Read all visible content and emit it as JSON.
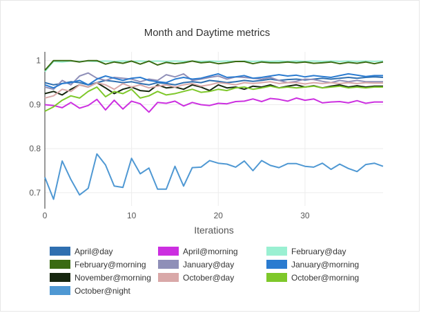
{
  "chart_data": {
    "type": "line",
    "title": "Month and Daytime metrics",
    "xlabel": "Iterations",
    "ylabel": "",
    "xlim": [
      0,
      39
    ],
    "ylim": [
      0.67,
      1.02
    ],
    "x_ticks": [
      0,
      10,
      20,
      30
    ],
    "y_ticks": [
      0.7,
      0.8,
      0.9,
      1
    ],
    "y_tick_labels": [
      "0.7",
      "0.8",
      "0.9",
      "1"
    ],
    "grid": true,
    "legend_position": "bottom",
    "series": [
      {
        "name": "April@day",
        "color": "#2f6fb0",
        "values": [
          0.95,
          0.945,
          0.948,
          0.952,
          0.95,
          0.945,
          0.95,
          0.955,
          0.953,
          0.95,
          0.952,
          0.948,
          0.945,
          0.95,
          0.948,
          0.945,
          0.95,
          0.952,
          0.95,
          0.955,
          0.953,
          0.95,
          0.952,
          0.955,
          0.953,
          0.955,
          0.958,
          0.955,
          0.957,
          0.958,
          0.956,
          0.958,
          0.96,
          0.958,
          0.96,
          0.962,
          0.96,
          0.962,
          0.963,
          0.962
        ]
      },
      {
        "name": "April@morning",
        "color": "#cc2fe0",
        "values": [
          0.9,
          0.898,
          0.893,
          0.905,
          0.892,
          0.898,
          0.912,
          0.888,
          0.91,
          0.89,
          0.908,
          0.902,
          0.883,
          0.905,
          0.903,
          0.908,
          0.897,
          0.905,
          0.9,
          0.898,
          0.903,
          0.902,
          0.907,
          0.908,
          0.913,
          0.907,
          0.914,
          0.912,
          0.908,
          0.915,
          0.91,
          0.913,
          0.904,
          0.906,
          0.907,
          0.904,
          0.909,
          0.903,
          0.906,
          0.906
        ]
      },
      {
        "name": "February@day",
        "color": "#9af0d2",
        "values": [
          0.975,
          0.998,
          0.997,
          0.999,
          0.998,
          0.999,
          0.998,
          0.999,
          0.998,
          0.999,
          0.998,
          0.999,
          0.998,
          0.999,
          0.998,
          0.999,
          0.998,
          0.999,
          0.998,
          0.999,
          0.998,
          0.999,
          0.998,
          0.999,
          0.998,
          0.999,
          0.998,
          0.999,
          0.998,
          0.999,
          0.998,
          0.999,
          0.998,
          0.999,
          0.998,
          0.999,
          0.998,
          0.999,
          0.998,
          0.999
        ]
      },
      {
        "name": "February@morning",
        "color": "#3a6a12",
        "values": [
          0.978,
          1.0,
          1.0,
          1.0,
          0.997,
          1.0,
          1.0,
          0.992,
          0.997,
          0.994,
          0.999,
          0.992,
          0.999,
          0.99,
          0.996,
          0.993,
          0.995,
          0.999,
          0.995,
          0.997,
          0.993,
          0.995,
          0.998,
          0.998,
          0.993,
          0.997,
          0.995,
          0.995,
          0.997,
          0.995,
          0.997,
          0.994,
          0.995,
          0.997,
          0.993,
          0.996,
          0.994,
          0.997,
          0.993,
          0.997
        ]
      },
      {
        "name": "January@day",
        "color": "#8f8fb8",
        "values": [
          0.94,
          0.935,
          0.955,
          0.945,
          0.965,
          0.972,
          0.96,
          0.955,
          0.962,
          0.96,
          0.958,
          0.952,
          0.958,
          0.955,
          0.968,
          0.963,
          0.97,
          0.955,
          0.958,
          0.962,
          0.965,
          0.958,
          0.963,
          0.962,
          0.96,
          0.958,
          0.962,
          0.955,
          0.95,
          0.953,
          0.958,
          0.957,
          0.953,
          0.95,
          0.955,
          0.952,
          0.955,
          0.952,
          0.952,
          0.952
        ]
      },
      {
        "name": "January@morning",
        "color": "#2a7bd0",
        "values": [
          0.945,
          0.938,
          0.948,
          0.95,
          0.955,
          0.945,
          0.958,
          0.965,
          0.96,
          0.955,
          0.96,
          0.962,
          0.955,
          0.952,
          0.95,
          0.958,
          0.962,
          0.958,
          0.96,
          0.965,
          0.97,
          0.962,
          0.963,
          0.966,
          0.96,
          0.962,
          0.965,
          0.968,
          0.965,
          0.967,
          0.963,
          0.966,
          0.964,
          0.962,
          0.966,
          0.97,
          0.967,
          0.964,
          0.966,
          0.966
        ]
      },
      {
        "name": "November@morning",
        "color": "#16260f",
        "values": [
          0.925,
          0.93,
          0.922,
          0.935,
          0.945,
          0.94,
          0.95,
          0.938,
          0.925,
          0.935,
          0.94,
          0.932,
          0.93,
          0.945,
          0.938,
          0.94,
          0.935,
          0.945,
          0.94,
          0.932,
          0.945,
          0.938,
          0.94,
          0.935,
          0.942,
          0.94,
          0.945,
          0.938,
          0.942,
          0.945,
          0.94,
          0.943,
          0.938,
          0.942,
          0.945,
          0.94,
          0.943,
          0.94,
          0.942,
          0.942
        ]
      },
      {
        "name": "October@day",
        "color": "#d9a8a8",
        "values": [
          0.915,
          0.92,
          0.935,
          0.93,
          0.945,
          0.94,
          0.95,
          0.945,
          0.935,
          0.948,
          0.94,
          0.945,
          0.938,
          0.942,
          0.945,
          0.94,
          0.945,
          0.948,
          0.942,
          0.945,
          0.95,
          0.948,
          0.945,
          0.95,
          0.948,
          0.95,
          0.952,
          0.948,
          0.95,
          0.95,
          0.947,
          0.95,
          0.948,
          0.95,
          0.948,
          0.95,
          0.948,
          0.95,
          0.949,
          0.949
        ]
      },
      {
        "name": "October@morning",
        "color": "#7ec82a",
        "values": [
          0.885,
          0.895,
          0.91,
          0.92,
          0.915,
          0.93,
          0.94,
          0.918,
          0.93,
          0.925,
          0.935,
          0.915,
          0.92,
          0.93,
          0.922,
          0.925,
          0.93,
          0.935,
          0.928,
          0.93,
          0.935,
          0.932,
          0.938,
          0.94,
          0.935,
          0.938,
          0.942,
          0.938,
          0.94,
          0.938,
          0.94,
          0.942,
          0.938,
          0.94,
          0.942,
          0.938,
          0.94,
          0.938,
          0.94,
          0.94
        ]
      },
      {
        "name": "October@night",
        "color": "#4f98d3",
        "values": [
          0.735,
          0.685,
          0.772,
          0.73,
          0.695,
          0.71,
          0.788,
          0.763,
          0.715,
          0.712,
          0.778,
          0.743,
          0.756,
          0.708,
          0.708,
          0.76,
          0.715,
          0.757,
          0.758,
          0.773,
          0.767,
          0.765,
          0.758,
          0.772,
          0.75,
          0.773,
          0.762,
          0.757,
          0.766,
          0.766,
          0.76,
          0.758,
          0.767,
          0.753,
          0.765,
          0.755,
          0.748,
          0.764,
          0.767,
          0.76
        ]
      }
    ]
  }
}
